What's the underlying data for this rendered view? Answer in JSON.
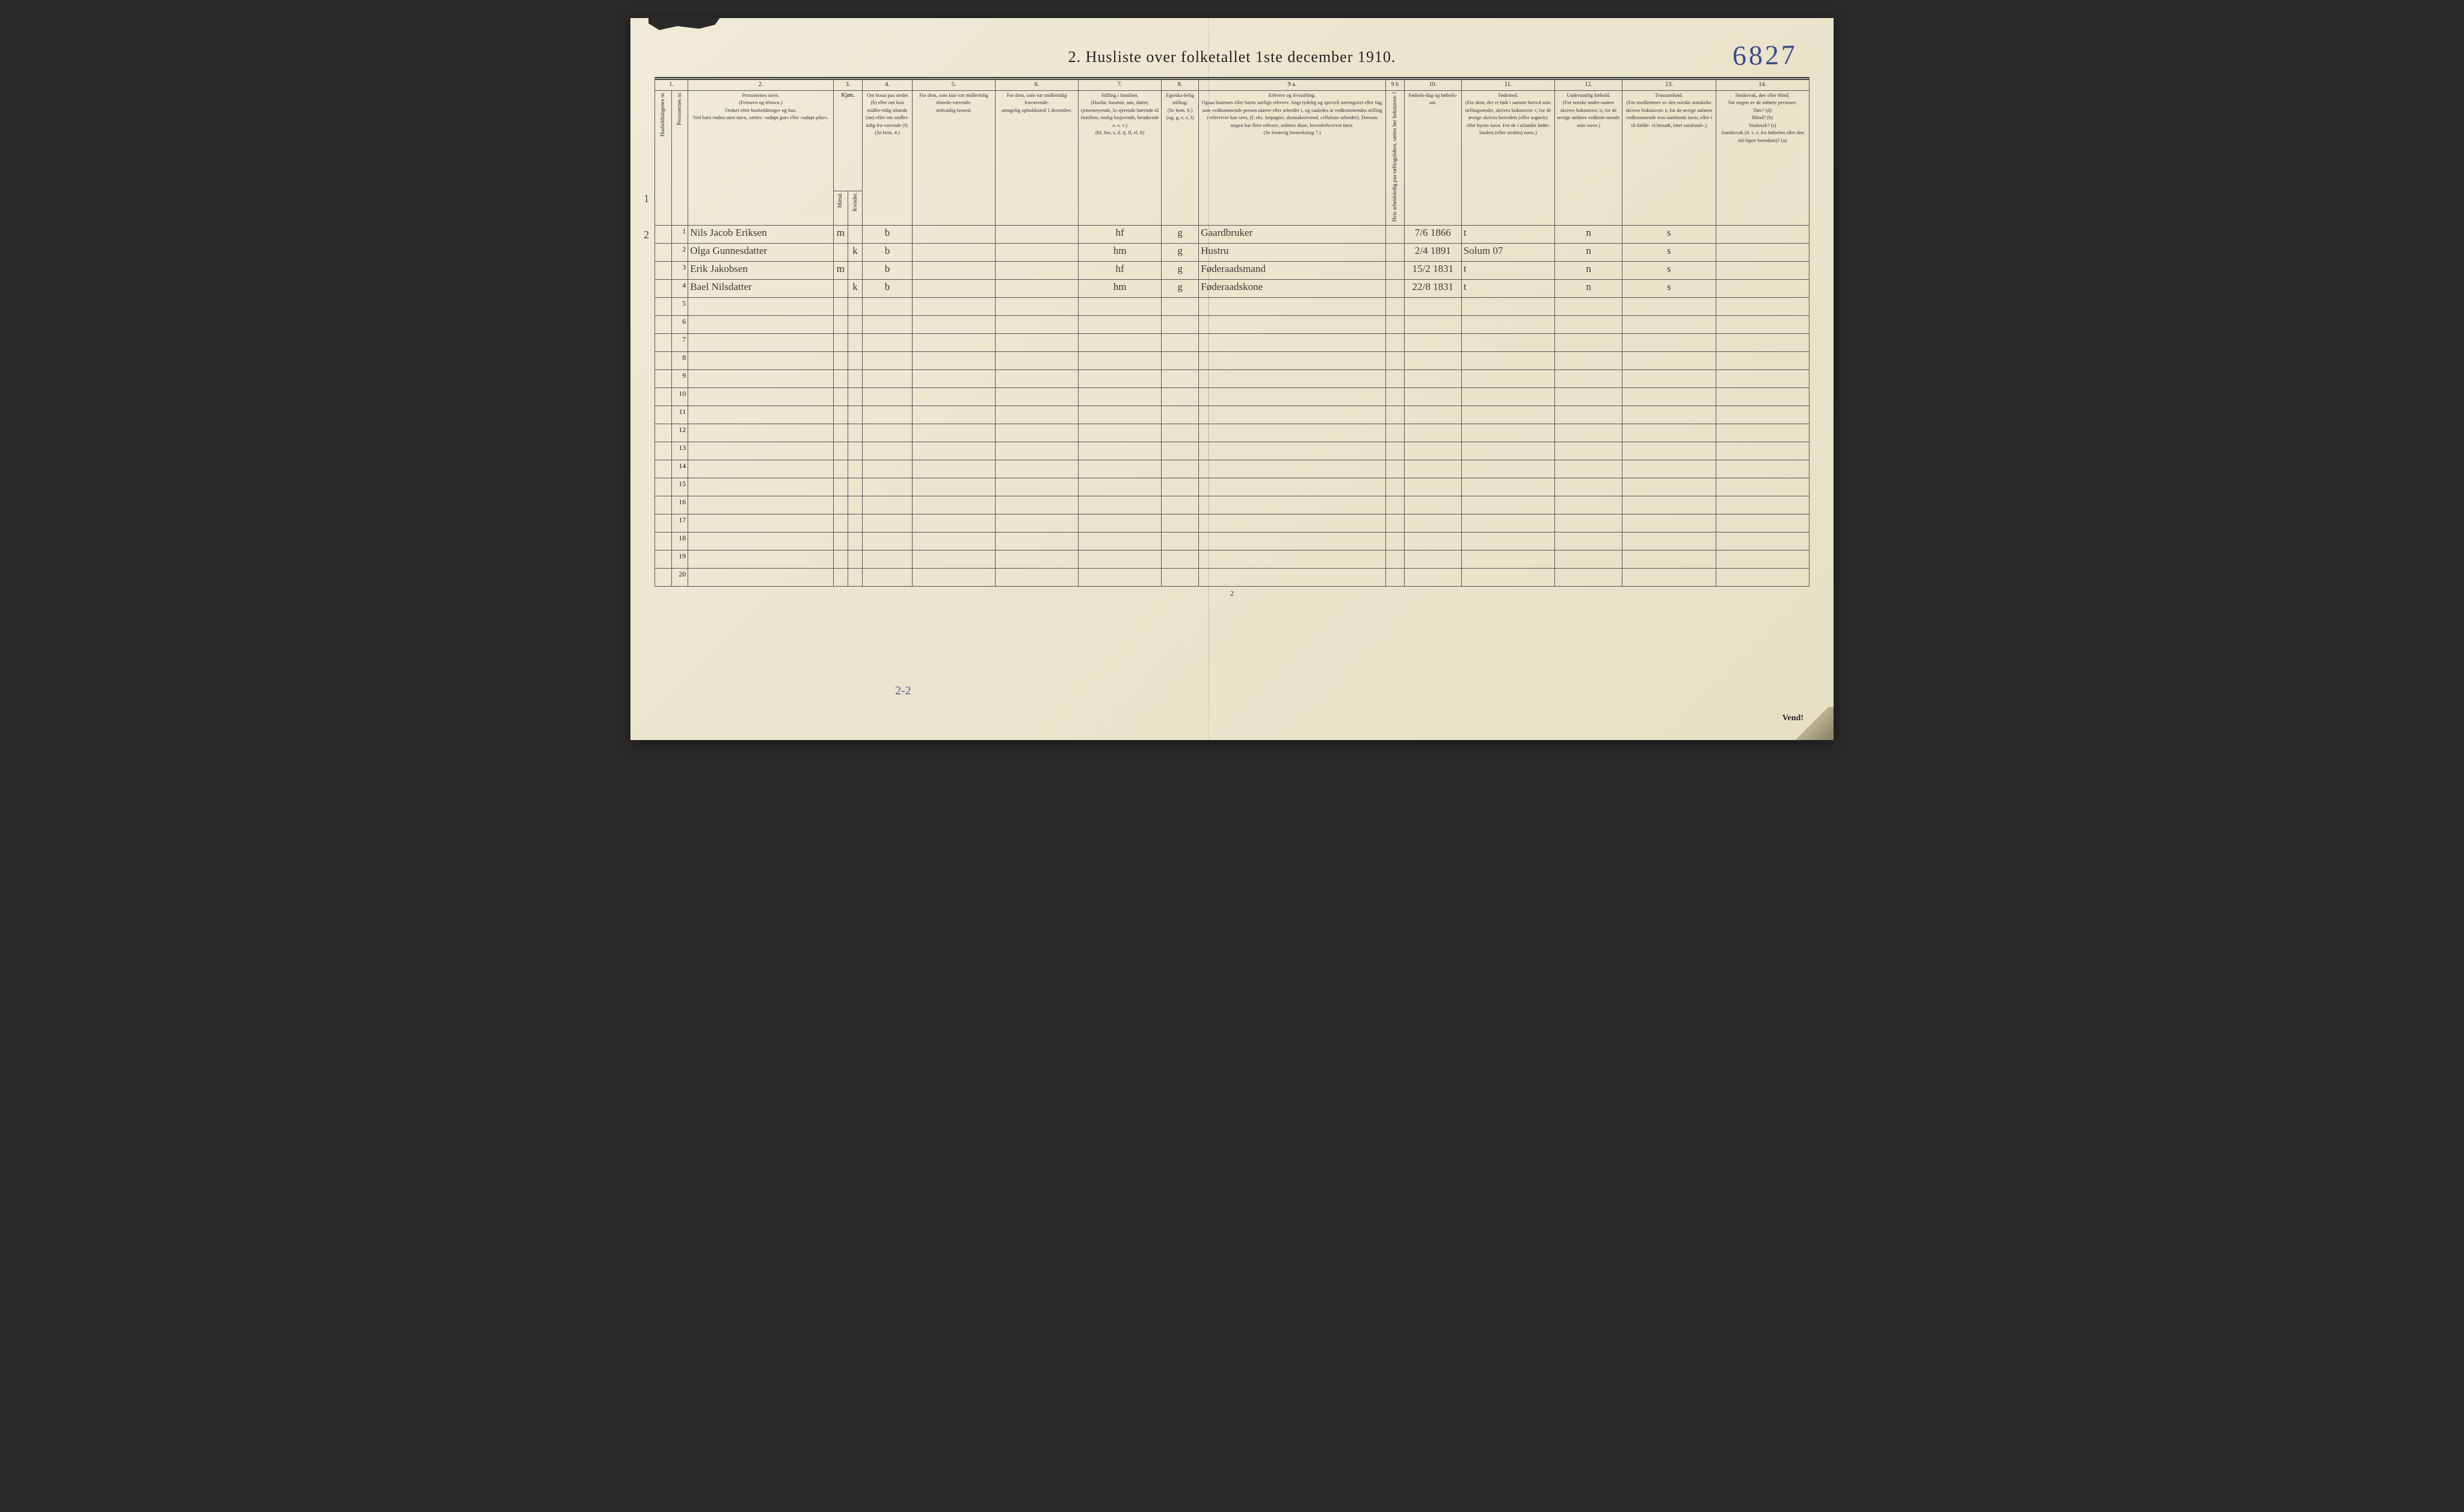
{
  "title": "2.  Husliste over folketallet 1ste december 1910.",
  "annotation_number": "6827",
  "page_number": "2",
  "footer_right": "Vend!",
  "left_margin_marks": {
    "r1": "1",
    "r3": "2"
  },
  "bottom_pencil": "2-2",
  "column_numbers": [
    "1.",
    "2.",
    "3.",
    "4.",
    "5.",
    "6.",
    "7.",
    "8.",
    "9 a.",
    "9 b",
    "10.",
    "11.",
    "12.",
    "13.",
    "14."
  ],
  "headers": {
    "c1a": "Husholdningenes nr.",
    "c1b": "Personernes nr.",
    "c2": "Personernes navn.\n(Fornavn og tilnavn.)\nOrdnet efter husholdninger og hus.\nVed barn endnu uten navn, sættes: «udøpt gut» eller «udøpt pike».",
    "c3": "Kjøn.",
    "c3m": "Mænd.",
    "c3k": "Kvinder.",
    "c3note": "m.   k.",
    "c4": "Om bosat paa stedet (b) eller om kun midler-tidig tilstede (mt) eller om midler-tidig fra-værende (f).\n(Se bem. 4.)",
    "c5": "For dem, som kun var midlertidig tilstede-værende:\nsedvanlig bosted.",
    "c6": "For dem, som var midlertidig fraværende:\nantagelig opholdssted 1 december.",
    "c7": "Stilling i familien.\n(Husfar, husmor, søn, datter, tjenestetyende, lo-sjerende hørende til familien, enslig losjerende, besøkende o. s. v.)\n(hf, hm, s, d, tj, fl, el, b)",
    "c8": "Egteska-belig stilling.\n(Se bem. 6.)\n(ug, g, e, s, f)",
    "c9a": "Erhverv og livsstilling.\nOgsaa husmors eller barns særlige erhverv. Angi tydelig og specielt næringsvei eller fag, som vedkommende person utøver eller arbeider i, og saaledes at vedkommendes stilling i erhvervet kan sees, (f. eks. forpagter, skomakersvend, cellulose-arbeider). Dersom nogen har flere erhverv, anføres disse, hovederhvervet først.\n(Se forøvrig bemerkning 7.)",
    "c9b": "Hvis arbeidsledig paa tællingstidten, sættes her bokstaven: l",
    "c10": "Fødsels-dag og fødsels-aar.",
    "c11": "Fødested.\n(For dem, der er født i samme herred som tællingsstedet, skrives bokstaven: t; for de øvrige skrives herredets (eller sognets) eller byens navn. For de i utlandet fødte: landets (eller stedets) navn.)",
    "c12": "Undersaatlig forhold.\n(For norske under-saatter skrives bokstaven: n; for de øvrige anføres vedkom-mende stats navn.)",
    "c13": "Trossamfund.\n(For medlemmer av den norske statskirke skrives bokstaven: s; for de øvrige anføres vedkommende tros-samfunds navn, eller i til-fælde: «Uttraadt, intet samfund».)",
    "c14": "Sindssvak, døv eller blind.\nVar nogen av de anførte personer:\nDøv?    (d)\nBlind?  (b)\nSindssyk? (s)\nAandssvak (d. v. s. fra fødselen eller den tid-ligste barndom)? (a)"
  },
  "rows": [
    {
      "n": "1",
      "name": "Nils Jacob Eriksen",
      "m": "m",
      "k": "",
      "res": "b",
      "c5": "",
      "c6": "",
      "fam": "hf",
      "eg": "g",
      "occ": "Gaardbruker",
      "led": "",
      "birth": "7/6 1866",
      "born": "t",
      "nat": "n",
      "rel": "s",
      "dis": ""
    },
    {
      "n": "2",
      "name": "Olga Gunnesdatter",
      "m": "",
      "k": "k",
      "res": "b",
      "c5": "",
      "c6": "",
      "fam": "hm",
      "eg": "g",
      "occ": "Hustru",
      "led": "",
      "birth": "2/4 1891",
      "born": "Solum  07",
      "nat": "n",
      "rel": "s",
      "dis": ""
    },
    {
      "n": "3",
      "name": "Erik Jakobsen",
      "m": "m",
      "k": "",
      "res": "b",
      "c5": "",
      "c6": "",
      "fam": "hf",
      "eg": "g",
      "occ": "Føderaadsmand",
      "led": "",
      "birth": "15/2 1831",
      "born": "t",
      "nat": "n",
      "rel": "s",
      "dis": ""
    },
    {
      "n": "4",
      "name": "Bael Nilsdatter",
      "m": "",
      "k": "k",
      "res": "b",
      "c5": "",
      "c6": "",
      "fam": "hm",
      "eg": "g",
      "occ": "Føderaadskone",
      "led": "",
      "birth": "22/8 1831",
      "born": "t",
      "nat": "n",
      "rel": "s",
      "dis": ""
    }
  ],
  "empty_rows": [
    "5",
    "6",
    "7",
    "8",
    "9",
    "10",
    "11",
    "12",
    "13",
    "14",
    "15",
    "16",
    "17",
    "18",
    "19",
    "20"
  ],
  "colors": {
    "paper": "#ece5ce",
    "ink": "#222222",
    "handwriting": "#3b3b33",
    "pen_blue": "#3a4a8a",
    "rule": "#555555"
  },
  "col_widths_pct": [
    1.6,
    1.6,
    14,
    1.4,
    1.4,
    4.8,
    8,
    8,
    8,
    3.6,
    18,
    1.8,
    5.5,
    9,
    6.5,
    9,
    9
  ],
  "fonts": {
    "print_pt": 10,
    "title_pt": 26,
    "hand_pt": 17,
    "annotation_pt": 46
  }
}
